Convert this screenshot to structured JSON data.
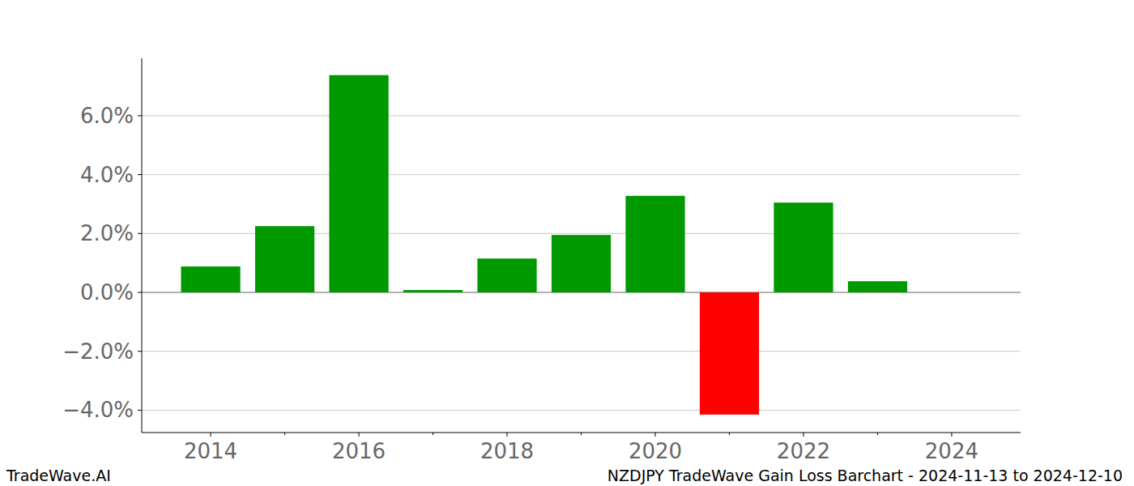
{
  "chart_data": {
    "type": "bar",
    "title": "NZDJPY TradeWave Gain Loss Barchart - 2024-11-13 to 2024-12-10",
    "source": "TradeWave.AI",
    "x": [
      2014,
      2015,
      2016,
      2017,
      2018,
      2019,
      2020,
      2021,
      2022,
      2023
    ],
    "values": [
      0.88,
      2.25,
      7.38,
      0.08,
      1.15,
      1.95,
      3.28,
      -4.15,
      3.05,
      0.38
    ],
    "colors": [
      "#009900",
      "#009900",
      "#009900",
      "#009900",
      "#009900",
      "#009900",
      "#009900",
      "#ff0000",
      "#009900",
      "#009900"
    ],
    "xlim": [
      2013.07,
      2024.93
    ],
    "xticks": [
      2014,
      2016,
      2018,
      2020,
      2022,
      2024
    ],
    "ylim": [
      -4.76,
      7.95
    ],
    "yticks": [
      {
        "value": -4,
        "label": "−4.0%"
      },
      {
        "value": -2,
        "label": "−2.0%"
      },
      {
        "value": 0,
        "label": "0.0%"
      },
      {
        "value": 2,
        "label": "2.0%"
      },
      {
        "value": 4,
        "label": "4.0%"
      },
      {
        "value": 6,
        "label": "6.0%"
      }
    ],
    "grid": true
  }
}
